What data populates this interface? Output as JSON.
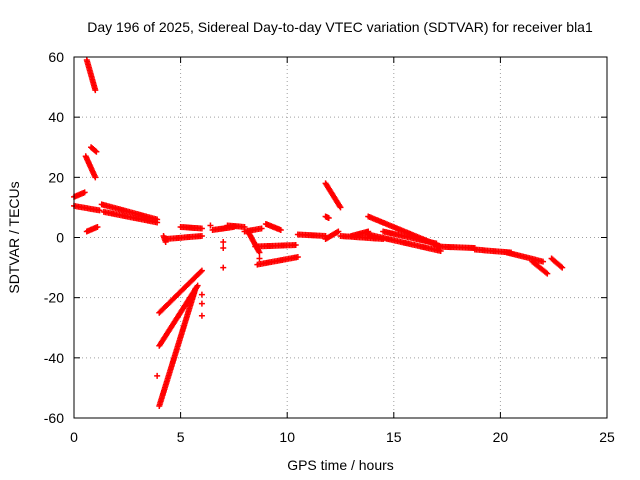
{
  "chart_data": {
    "type": "scatter",
    "title": "Day 196 of 2025, Sidereal Day-to-day VTEC variation (SDTVAR) for receiver bla1",
    "xlabel": "GPS time / hours",
    "ylabel": "SDTVAR / TECUs",
    "xlim": [
      0,
      25
    ],
    "ylim": [
      -60,
      60
    ],
    "xticks": [
      0,
      5,
      10,
      15,
      20,
      25
    ],
    "yticks": [
      -60,
      -40,
      -20,
      0,
      20,
      40,
      60
    ],
    "grid": true,
    "marker": "+",
    "color": "#ff0000",
    "segments": [
      {
        "x": [
          0.6,
          1.0
        ],
        "y": [
          59,
          49
        ]
      },
      {
        "x": [
          0.8,
          1.05
        ],
        "y": [
          30,
          28.5
        ]
      },
      {
        "x": [
          0.55,
          1.0
        ],
        "y": [
          27,
          20
        ]
      },
      {
        "x": [
          0.0,
          0.5
        ],
        "y": [
          13.5,
          15
        ]
      },
      {
        "x": [
          0.0,
          1.2
        ],
        "y": [
          10.5,
          9
        ]
      },
      {
        "x": [
          0.6,
          1.1
        ],
        "y": [
          2,
          3.5
        ]
      },
      {
        "x": [
          1.3,
          3.9
        ],
        "y": [
          11,
          6
        ]
      },
      {
        "x": [
          1.4,
          3.9
        ],
        "y": [
          8.5,
          5
        ]
      },
      {
        "x": [
          4.2,
          4.3
        ],
        "y": [
          0.5,
          -1.5
        ]
      },
      {
        "x": [
          4.3,
          6.0
        ],
        "y": [
          -0.5,
          0.5
        ]
      },
      {
        "x": [
          5.0,
          6.0
        ],
        "y": [
          3.5,
          3
        ]
      },
      {
        "x": [
          6.5,
          7.5
        ],
        "y": [
          2.5,
          3.5
        ]
      },
      {
        "x": [
          7.2,
          8.0
        ],
        "y": [
          4,
          3.5
        ]
      },
      {
        "x": [
          8.0,
          8.8
        ],
        "y": [
          2,
          3
        ]
      },
      {
        "x": [
          8.2,
          8.7
        ],
        "y": [
          1.5,
          -5
        ]
      },
      {
        "x": [
          8.5,
          10.4
        ],
        "y": [
          -3,
          -2.5
        ]
      },
      {
        "x": [
          9.0,
          9.7
        ],
        "y": [
          4.5,
          2.5
        ]
      },
      {
        "x": [
          8.6,
          10.5
        ],
        "y": [
          -9,
          -6.5
        ]
      },
      {
        "x": [
          10.5,
          11.8
        ],
        "y": [
          1,
          0.5
        ]
      },
      {
        "x": [
          11.8,
          12.4
        ],
        "y": [
          -0.5,
          2
        ]
      },
      {
        "x": [
          11.8,
          12.5
        ],
        "y": [
          18,
          10
        ]
      },
      {
        "x": [
          11.8,
          11.95
        ],
        "y": [
          7,
          6.5
        ]
      },
      {
        "x": [
          12.5,
          14.5
        ],
        "y": [
          0.5,
          -0.5
        ]
      },
      {
        "x": [
          13.0,
          13.8
        ],
        "y": [
          0.5,
          2
        ]
      },
      {
        "x": [
          13.8,
          17.2
        ],
        "y": [
          7,
          -3
        ]
      },
      {
        "x": [
          13.8,
          17.2
        ],
        "y": [
          1,
          -4.5
        ]
      },
      {
        "x": [
          14.5,
          17.0
        ],
        "y": [
          2,
          -2
        ]
      },
      {
        "x": [
          17.0,
          18.8
        ],
        "y": [
          -3,
          -3.5
        ]
      },
      {
        "x": [
          18.8,
          20.5
        ],
        "y": [
          -4,
          -5
        ]
      },
      {
        "x": [
          20.3,
          22.0
        ],
        "y": [
          -5,
          -8
        ]
      },
      {
        "x": [
          21.5,
          22.2
        ],
        "y": [
          -8,
          -12
        ]
      },
      {
        "x": [
          22.4,
          22.9
        ],
        "y": [
          -7,
          -10
        ]
      },
      {
        "x": [
          4.0,
          6.0
        ],
        "y": [
          -25,
          -11
        ]
      },
      {
        "x": [
          4.0,
          5.8
        ],
        "y": [
          -36,
          -16
        ]
      },
      {
        "x": [
          4.0,
          5.7
        ],
        "y": [
          -56,
          -17
        ]
      }
    ],
    "points": [
      {
        "x": 3.9,
        "y": -46
      },
      {
        "x": 6.0,
        "y": -19
      },
      {
        "x": 6.0,
        "y": -22
      },
      {
        "x": 6.0,
        "y": -26
      },
      {
        "x": 7.0,
        "y": -1.5
      },
      {
        "x": 7.0,
        "y": -3.5
      },
      {
        "x": 7.0,
        "y": -10
      },
      {
        "x": 6.4,
        "y": 4
      },
      {
        "x": 8.7,
        "y": -7
      }
    ]
  }
}
